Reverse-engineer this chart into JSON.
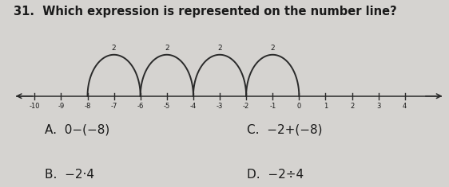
{
  "title": "31.  Which expression is represented on the number line?",
  "title_fontsize": 10.5,
  "title_fontweight": "bold",
  "number_line_xlim": [
    -10.8,
    5.5
  ],
  "tick_positions": [
    -10,
    -9,
    -8,
    -7,
    -6,
    -5,
    -4,
    -3,
    -2,
    -1,
    0,
    1,
    2,
    3,
    4
  ],
  "tick_labels": [
    "-10",
    "-9",
    "-8",
    "-7",
    "-6",
    "-5",
    "-4",
    "-3",
    "-2",
    "-1",
    "0",
    "1",
    "2",
    "3",
    "4"
  ],
  "arc_starts": [
    -8,
    -6,
    -4,
    -2
  ],
  "arc_ends": [
    -6,
    -4,
    -2,
    0
  ],
  "arc_labels": [
    "2",
    "2",
    "2",
    "2"
  ],
  "arc_color": "#2a2a2a",
  "line_color": "#2a2a2a",
  "background_color": "#d5d3d0",
  "answer_A_label": "A.",
  "answer_A_text": "0−(−8)",
  "answer_B_label": "B.",
  "answer_B_text": "−2·4",
  "answer_C_label": "C.",
  "answer_C_text": "−2+(−8)",
  "answer_D_label": "D.",
  "answer_D_text": "−2÷4",
  "option_fontsize": 11
}
